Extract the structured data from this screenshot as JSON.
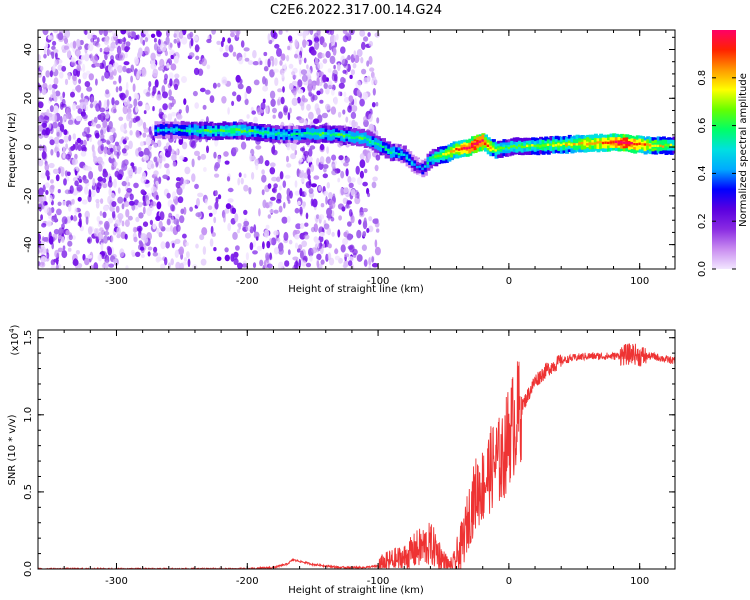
{
  "figure_title": "C2E6.2022.317.00.14.G24",
  "chart_data": [
    {
      "type": "heatmap",
      "xlabel": "Height of straight line (km)",
      "ylabel": "Frequency (Hz)",
      "xlim": [
        -360,
        127
      ],
      "ylim": [
        -50,
        48
      ],
      "xticks": [
        -300,
        -200,
        -100,
        0,
        100
      ],
      "yticks": [
        -40,
        -20,
        0,
        20,
        40
      ],
      "colorbar": {
        "label": "Normalized spectral amplitude",
        "range": [
          0.0,
          1.0
        ],
        "ticks": [
          "0.0",
          "0.2",
          "0.4",
          "0.6",
          "0.8"
        ],
        "colors": [
          "#f2e6ff",
          "#c98cf0",
          "#8a2be2",
          "#5a00e0",
          "#0000ff",
          "#00aaff",
          "#00e0e0",
          "#00ff66",
          "#66ff00",
          "#ffff00",
          "#ff9900",
          "#ff2200",
          "#ff0066"
        ]
      },
      "ridge": {
        "x": [
          -270,
          -250,
          -230,
          -210,
          -190,
          -170,
          -150,
          -130,
          -110,
          -100,
          -90,
          -80,
          -75,
          -70,
          -65,
          -60,
          -50,
          -40,
          -30,
          -25,
          -20,
          -15,
          -10,
          -5,
          0,
          20,
          40,
          60,
          80,
          90,
          100,
          110,
          127
        ],
        "frequency": [
          7,
          7,
          6.5,
          7,
          6,
          5,
          5.5,
          5,
          3.5,
          1,
          -2,
          -3,
          -6,
          -8,
          -9,
          -5,
          -3,
          -1,
          0,
          1.5,
          2.5,
          0,
          -1,
          -0.5,
          0,
          0.5,
          1,
          1.5,
          2,
          1.5,
          1,
          0.5,
          0.5
        ],
        "amplitude": [
          0.35,
          0.4,
          0.45,
          0.5,
          0.45,
          0.4,
          0.45,
          0.45,
          0.45,
          0.4,
          0.45,
          0.35,
          0.35,
          0.3,
          0.3,
          0.45,
          0.6,
          0.75,
          0.85,
          0.9,
          0.85,
          0.7,
          0.6,
          0.5,
          0.5,
          0.55,
          0.6,
          0.7,
          0.8,
          0.9,
          0.75,
          0.65,
          0.55
        ]
      },
      "noise_region_end_x": -100
    },
    {
      "type": "line",
      "xlabel": "Height of straight line (km)",
      "ylabel": "SNR (10 * v/v)",
      "yscale_label": "(x10",
      "yscale_exponent": "4",
      "xlim": [
        -360,
        127
      ],
      "ylim": [
        0.0,
        1.55
      ],
      "xticks": [
        -300,
        -200,
        -100,
        0,
        100
      ],
      "yticks": [
        "0.0",
        "0.5",
        "1.0",
        "1.5"
      ],
      "color": "#ee3333",
      "series": [
        {
          "x": [
            -360,
            -300,
            -250,
            -200,
            -180,
            -170,
            -165,
            -160,
            -150,
            -130,
            -110,
            -100,
            -90,
            -80,
            -70,
            -60,
            -55,
            -50,
            -45,
            -40,
            -35,
            -30,
            -25,
            -20,
            -15,
            -10,
            -5,
            0,
            10,
            20,
            30,
            40,
            50,
            60,
            70,
            80,
            90,
            95,
            100,
            110,
            120,
            127
          ],
          "y": [
            0.0,
            0.0,
            0.0,
            0.0,
            0.01,
            0.03,
            0.06,
            0.05,
            0.03,
            0.01,
            0.01,
            0.02,
            0.05,
            0.07,
            0.13,
            0.16,
            0.12,
            0.05,
            0.01,
            0.06,
            0.18,
            0.36,
            0.5,
            0.54,
            0.63,
            0.7,
            0.7,
            0.88,
            1.05,
            1.22,
            1.3,
            1.35,
            1.37,
            1.38,
            1.38,
            1.38,
            1.39,
            1.4,
            1.38,
            1.38,
            1.36,
            1.35
          ]
        }
      ]
    }
  ]
}
